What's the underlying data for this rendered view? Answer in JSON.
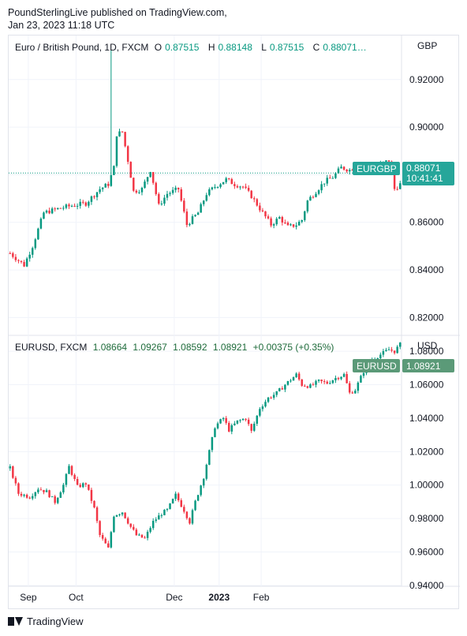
{
  "header": {
    "publisher_line": "PoundSterlingLive published on TradingView.com,",
    "date_line": "Jan 23, 2023 11:18 UTC"
  },
  "footer": {
    "brand": "TradingView",
    "logo_icon": "tradingview-logo-icon"
  },
  "colors": {
    "up": "#089981",
    "down": "#f23645",
    "eurusd_tag": "#5b9a78",
    "eurgbp_tag": "#26a69a",
    "grid": "#f0f3fa"
  },
  "chart_data": [
    {
      "type": "candlestick",
      "title": "Euro / British Pound, 1D, FXCM",
      "symbol": "EURGBP",
      "currency": "GBP",
      "ohlc_labels": {
        "o_label": "O",
        "o": "0.87515",
        "h_label": "H",
        "h": "0.88148",
        "l_label": "L",
        "l": "0.87515",
        "c_label": "C",
        "c": "0.88071…"
      },
      "last_price": "0.88071",
      "countdown": "10:41:41",
      "ylim": [
        0.8125,
        0.9385
      ],
      "yticks": [
        "0.92000",
        "0.90000",
        "0.88000",
        "0.86000",
        "0.84000",
        "0.82000"
      ],
      "ytick_values": [
        0.92,
        0.9,
        0.88,
        0.86,
        0.84,
        0.82
      ],
      "last_price_line": 0.88071,
      "approx_close_path": [
        [
          0,
          0.847
        ],
        [
          5,
          0.842
        ],
        [
          8,
          0.85
        ],
        [
          12,
          0.864
        ],
        [
          18,
          0.866
        ],
        [
          22,
          0.867
        ],
        [
          27,
          0.868
        ],
        [
          32,
          0.874
        ],
        [
          35,
          0.876
        ],
        [
          37,
          0.883
        ],
        [
          38,
          0.897
        ],
        [
          40,
          0.898
        ],
        [
          42,
          0.886
        ],
        [
          44,
          0.873
        ],
        [
          47,
          0.874
        ],
        [
          50,
          0.882
        ],
        [
          53,
          0.867
        ],
        [
          56,
          0.872
        ],
        [
          60,
          0.874
        ],
        [
          63,
          0.859
        ],
        [
          67,
          0.864
        ],
        [
          70,
          0.872
        ],
        [
          73,
          0.875
        ],
        [
          77,
          0.878
        ],
        [
          80,
          0.876
        ],
        [
          83,
          0.875
        ],
        [
          86,
          0.871
        ],
        [
          90,
          0.864
        ],
        [
          93,
          0.859
        ],
        [
          96,
          0.862
        ],
        [
          99,
          0.858
        ],
        [
          102,
          0.859
        ],
        [
          104,
          0.861
        ],
        [
          106,
          0.869
        ],
        [
          109,
          0.873
        ],
        [
          112,
          0.877
        ],
        [
          115,
          0.879
        ],
        [
          118,
          0.883
        ],
        [
          121,
          0.882
        ],
        [
          124,
          0.884
        ],
        [
          127,
          0.881
        ],
        [
          130,
          0.883
        ],
        [
          133,
          0.885
        ],
        [
          135,
          0.886
        ],
        [
          137,
          0.874
        ],
        [
          139,
          0.876
        ],
        [
          140,
          0.8807
        ]
      ]
    },
    {
      "type": "candlestick",
      "title": "EURUSD, FXCM",
      "symbol": "EURUSD",
      "currency": "USD",
      "ohlc_values": {
        "o": "1.08664",
        "h": "1.09267",
        "l": "1.08592",
        "c": "1.08921",
        "change": "+0.00375 (+0.35%)"
      },
      "last_price": "1.08921",
      "ylim": [
        0.9395,
        1.0895
      ],
      "yticks": [
        "1.08000",
        "1.06000",
        "1.04000",
        "1.02000",
        "1.00000",
        "0.98000",
        "0.96000",
        "0.94000"
      ],
      "ytick_values": [
        1.08,
        1.06,
        1.04,
        1.02,
        1.0,
        0.98,
        0.96,
        0.94
      ],
      "approx_close_path": [
        [
          0,
          1.01
        ],
        [
          3,
          0.995
        ],
        [
          7,
          0.993
        ],
        [
          10,
          0.998
        ],
        [
          13,
          0.996
        ],
        [
          16,
          0.99
        ],
        [
          19,
          1.0
        ],
        [
          21,
          1.011
        ],
        [
          24,
          0.999
        ],
        [
          27,
          1.001
        ],
        [
          30,
          0.986
        ],
        [
          32,
          0.97
        ],
        [
          35,
          0.962
        ],
        [
          37,
          0.982
        ],
        [
          40,
          0.984
        ],
        [
          43,
          0.975
        ],
        [
          45,
          0.97
        ],
        [
          48,
          0.968
        ],
        [
          51,
          0.978
        ],
        [
          54,
          0.983
        ],
        [
          56,
          0.985
        ],
        [
          59,
          0.994
        ],
        [
          62,
          0.985
        ],
        [
          64,
          0.978
        ],
        [
          66,
          0.99
        ],
        [
          69,
          1.005
        ],
        [
          71,
          1.02
        ],
        [
          73,
          1.035
        ],
        [
          76,
          1.04
        ],
        [
          78,
          1.033
        ],
        [
          81,
          1.038
        ],
        [
          84,
          1.04
        ],
        [
          86,
          1.032
        ],
        [
          89,
          1.046
        ],
        [
          92,
          1.052
        ],
        [
          95,
          1.055
        ],
        [
          98,
          1.06
        ],
        [
          100,
          1.063
        ],
        [
          102,
          1.066
        ],
        [
          104,
          1.06
        ],
        [
          107,
          1.059
        ],
        [
          110,
          1.062
        ],
        [
          113,
          1.061
        ],
        [
          116,
          1.064
        ],
        [
          119,
          1.066
        ],
        [
          121,
          1.055
        ],
        [
          123,
          1.057
        ],
        [
          126,
          1.068
        ],
        [
          129,
          1.075
        ],
        [
          132,
          1.078
        ],
        [
          135,
          1.081
        ],
        [
          137,
          1.08
        ],
        [
          139,
          1.084
        ],
        [
          140,
          1.0892
        ]
      ]
    }
  ],
  "x_axis": {
    "labels": [
      "Sep",
      "Oct",
      "Dec",
      "2023",
      "Feb"
    ],
    "bold": [
      "2023"
    ],
    "label_bar_index": [
      7,
      24,
      59,
      75,
      90
    ],
    "bars_visible": 140
  }
}
